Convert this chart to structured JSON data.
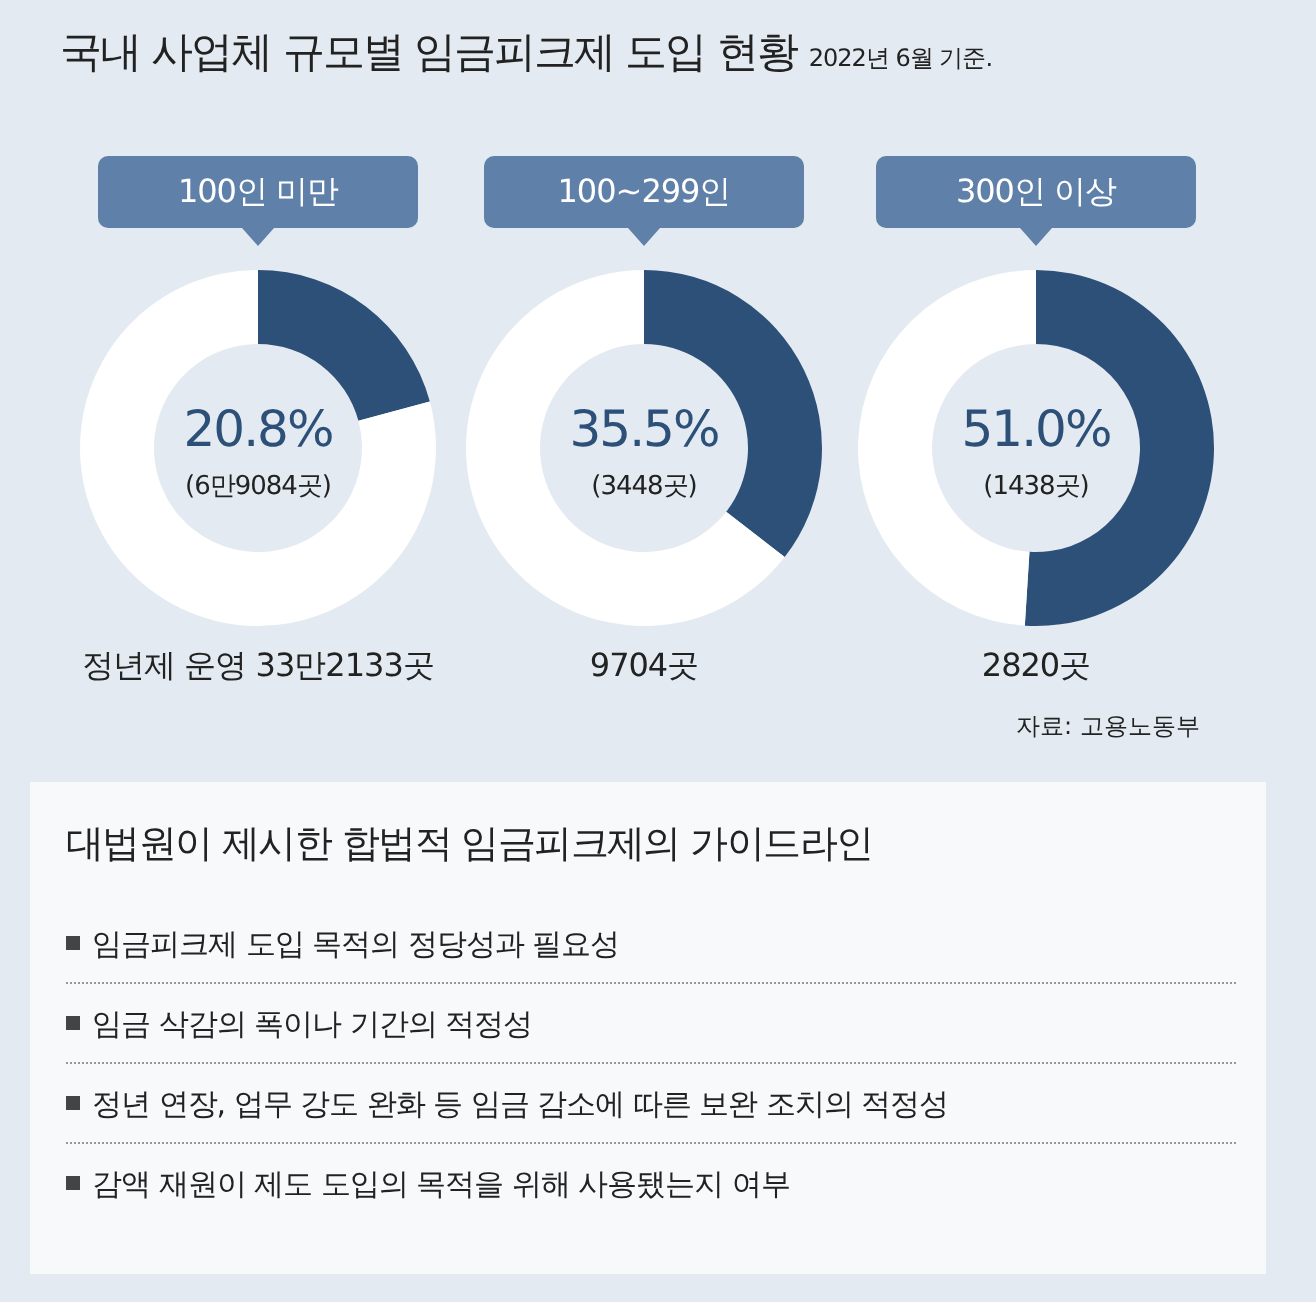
{
  "chart_data": [
    {
      "type": "other",
      "title": "국내 사업체 규모별 임금피크제 도입 현황",
      "subtitle": "2022년 6월 기준."
    },
    {
      "type": "donut",
      "categories": [
        null,
        null
      ],
      "values": [
        20.8,
        79.2
      ],
      "colors": [
        "#2d5079",
        "#ffffff"
      ],
      "annotations": [
        "100인 미만",
        "20.8%",
        "(6만9084곳)",
        "정년제 운영 33만2133곳"
      ]
    },
    {
      "type": "donut",
      "categories": [
        null,
        null
      ],
      "values": [
        35.5,
        64.5
      ],
      "colors": [
        "#2d5079",
        "#ffffff"
      ],
      "annotations": [
        "100~299인",
        "35.5%",
        "(3448곳)",
        "9704곳"
      ]
    },
    {
      "type": "donut",
      "categories": [
        null,
        null
      ],
      "values": [
        51.0,
        49.0
      ],
      "colors": [
        "#2d5079",
        "#ffffff"
      ],
      "annotations": [
        "300인 이상",
        "51.0%",
        "(1438곳)",
        "2820곳",
        "자료: 고용노동부"
      ]
    },
    {
      "type": "other",
      "title": "대법원이 제시한 합법적 임금피크제의 가이드라인",
      "annotations": [
        "임금피크제 도입 목적의 정당성과 필요성",
        "임금 삭감의 폭이나 기간의 적정성",
        "정년 연장, 업무 강도 완화 등 임금 감소에 따른 보완 조치의 적정성",
        "감액 재원이 제도 도입의 목적을 위해 사용됐는지 여부"
      ]
    }
  ]
}
